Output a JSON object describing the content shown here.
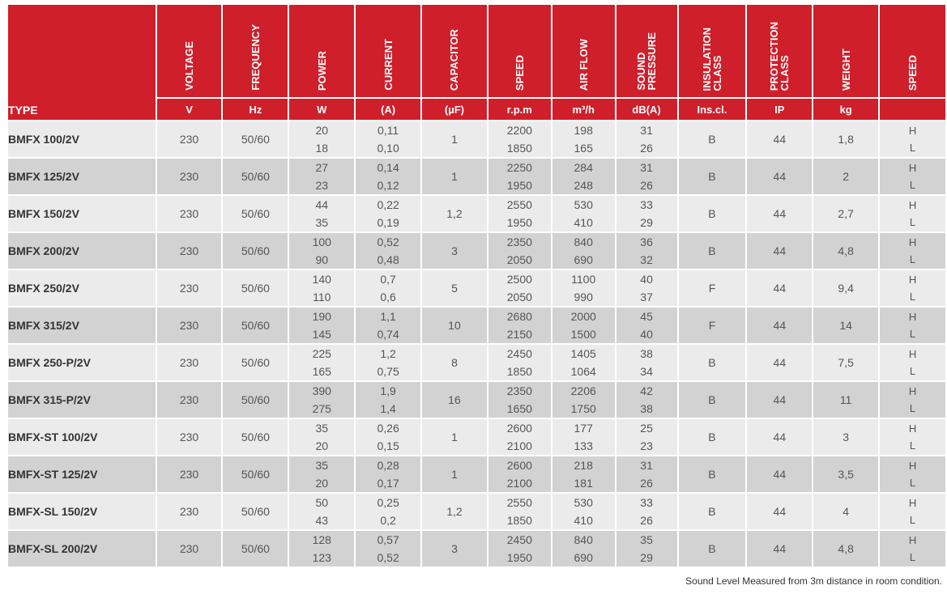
{
  "columns": [
    {
      "key": "type",
      "name": "",
      "unit": "TYPE"
    },
    {
      "key": "voltage",
      "name": "VOLTAGE",
      "unit": "V"
    },
    {
      "key": "frequency",
      "name": "FREQUENCY",
      "unit": "Hz"
    },
    {
      "key": "power",
      "name": "POWER",
      "unit": "W"
    },
    {
      "key": "current",
      "name": "CURRENT",
      "unit": "(A)"
    },
    {
      "key": "capacitor",
      "name": "CAPACITOR",
      "unit": "(µF)"
    },
    {
      "key": "speed",
      "name": "SPEED",
      "unit": "r.p.m"
    },
    {
      "key": "airflow",
      "name": "AIR FLOW",
      "unit": "m³/h"
    },
    {
      "key": "sound",
      "name": "SOUND\nPRESSURE",
      "unit": "dB(A)"
    },
    {
      "key": "insulation",
      "name": "INSULATION\nCLASS",
      "unit": "Ins.cl."
    },
    {
      "key": "protection",
      "name": "PROTECTION\nCLASS",
      "unit": "IP"
    },
    {
      "key": "weight",
      "name": "WEIGHT",
      "unit": "kg"
    },
    {
      "key": "speedmode",
      "name": "SPEED",
      "unit": ""
    }
  ],
  "rows": [
    {
      "type": "BMFX 100/2V",
      "voltage": "230",
      "frequency": "50/60",
      "power": [
        "20",
        "18"
      ],
      "current": [
        "0,11",
        "0,10"
      ],
      "capacitor": "1",
      "speed": [
        "2200",
        "1850"
      ],
      "airflow": [
        "198",
        "165"
      ],
      "sound": [
        "31",
        "26"
      ],
      "insulation": "B",
      "protection": "44",
      "weight": "1,8",
      "speedmode": [
        "H",
        "L"
      ]
    },
    {
      "type": "BMFX 125/2V",
      "voltage": "230",
      "frequency": "50/60",
      "power": [
        "27",
        "23"
      ],
      "current": [
        "0,14",
        "0,12"
      ],
      "capacitor": "1",
      "speed": [
        "2250",
        "1950"
      ],
      "airflow": [
        "284",
        "248"
      ],
      "sound": [
        "31",
        "26"
      ],
      "insulation": "B",
      "protection": "44",
      "weight": "2",
      "speedmode": [
        "H",
        "L"
      ]
    },
    {
      "type": "BMFX 150/2V",
      "voltage": "230",
      "frequency": "50/60",
      "power": [
        "44",
        "35"
      ],
      "current": [
        "0,22",
        "0,19"
      ],
      "capacitor": "1,2",
      "speed": [
        "2550",
        "1950"
      ],
      "airflow": [
        "530",
        "410"
      ],
      "sound": [
        "33",
        "29"
      ],
      "insulation": "B",
      "protection": "44",
      "weight": "2,7",
      "speedmode": [
        "H",
        "L"
      ]
    },
    {
      "type": "BMFX 200/2V",
      "voltage": "230",
      "frequency": "50/60",
      "power": [
        "100",
        "90"
      ],
      "current": [
        "0,52",
        "0,48"
      ],
      "capacitor": "3",
      "speed": [
        "2350",
        "2050"
      ],
      "airflow": [
        "840",
        "690"
      ],
      "sound": [
        "36",
        "32"
      ],
      "insulation": "B",
      "protection": "44",
      "weight": "4,8",
      "speedmode": [
        "H",
        "L"
      ]
    },
    {
      "type": "BMFX 250/2V",
      "voltage": "230",
      "frequency": "50/60",
      "power": [
        "140",
        "110"
      ],
      "current": [
        "0,7",
        "0,6"
      ],
      "capacitor": "5",
      "speed": [
        "2500",
        "2050"
      ],
      "airflow": [
        "1100",
        "990"
      ],
      "sound": [
        "40",
        "37"
      ],
      "insulation": "F",
      "protection": "44",
      "weight": "9,4",
      "speedmode": [
        "H",
        "L"
      ]
    },
    {
      "type": "BMFX 315/2V",
      "voltage": "230",
      "frequency": "50/60",
      "power": [
        "190",
        "145"
      ],
      "current": [
        "1,1",
        "0,74"
      ],
      "capacitor": "10",
      "speed": [
        "2680",
        "2150"
      ],
      "airflow": [
        "2000",
        "1500"
      ],
      "sound": [
        "45",
        "40"
      ],
      "insulation": "F",
      "protection": "44",
      "weight": "14",
      "speedmode": [
        "H",
        "L"
      ]
    },
    {
      "type": "BMFX 250-P/2V",
      "voltage": "230",
      "frequency": "50/60",
      "power": [
        "225",
        "165"
      ],
      "current": [
        "1,2",
        "0,75"
      ],
      "capacitor": "8",
      "speed": [
        "2450",
        "1850"
      ],
      "airflow": [
        "1405",
        "1064"
      ],
      "sound": [
        "38",
        "34"
      ],
      "insulation": "B",
      "protection": "44",
      "weight": "7,5",
      "speedmode": [
        "H",
        "L"
      ]
    },
    {
      "type": "BMFX 315-P/2V",
      "voltage": "230",
      "frequency": "50/60",
      "power": [
        "390",
        "275"
      ],
      "current": [
        "1,9",
        "1,4"
      ],
      "capacitor": "16",
      "speed": [
        "2350",
        "1650"
      ],
      "airflow": [
        "2206",
        "1750"
      ],
      "sound": [
        "42",
        "38"
      ],
      "insulation": "B",
      "protection": "44",
      "weight": "11",
      "speedmode": [
        "H",
        "L"
      ]
    },
    {
      "type": "BMFX-ST 100/2V",
      "voltage": "230",
      "frequency": "50/60",
      "power": [
        "35",
        "20"
      ],
      "current": [
        "0,26",
        "0,15"
      ],
      "capacitor": "1",
      "speed": [
        "2600",
        "2100"
      ],
      "airflow": [
        "177",
        "133"
      ],
      "sound": [
        "25",
        "23"
      ],
      "insulation": "B",
      "protection": "44",
      "weight": "3",
      "speedmode": [
        "H",
        "L"
      ]
    },
    {
      "type": "BMFX-ST 125/2V",
      "voltage": "230",
      "frequency": "50/60",
      "power": [
        "35",
        "20"
      ],
      "current": [
        "0,28",
        "0,17"
      ],
      "capacitor": "1",
      "speed": [
        "2600",
        "2100"
      ],
      "airflow": [
        "218",
        "181"
      ],
      "sound": [
        "31",
        "26"
      ],
      "insulation": "B",
      "protection": "44",
      "weight": "3,5",
      "speedmode": [
        "H",
        "L"
      ]
    },
    {
      "type": "BMFX-SL 150/2V",
      "voltage": "230",
      "frequency": "50/60",
      "power": [
        "50",
        "43"
      ],
      "current": [
        "0,25",
        "0,2"
      ],
      "capacitor": "1,2",
      "speed": [
        "2550",
        "1850"
      ],
      "airflow": [
        "530",
        "410"
      ],
      "sound": [
        "33",
        "26"
      ],
      "insulation": "B",
      "protection": "44",
      "weight": "4",
      "speedmode": [
        "H",
        "L"
      ]
    },
    {
      "type": "BMFX-SL 200/2V",
      "voltage": "230",
      "frequency": "50/60",
      "power": [
        "128",
        "123"
      ],
      "current": [
        "0,57",
        "0,52"
      ],
      "capacitor": "3",
      "speed": [
        "2450",
        "1950"
      ],
      "airflow": [
        "840",
        "690"
      ],
      "sound": [
        "35",
        "29"
      ],
      "insulation": "B",
      "protection": "44",
      "weight": "4,8",
      "speedmode": [
        "H",
        "L"
      ]
    }
  ],
  "footnote": "Sound Level Measured from 3m distance in room condition.",
  "colors": {
    "header_red": "#cf1f2b",
    "row_light": "#ebebeb",
    "row_dark": "#d2d2d2"
  }
}
